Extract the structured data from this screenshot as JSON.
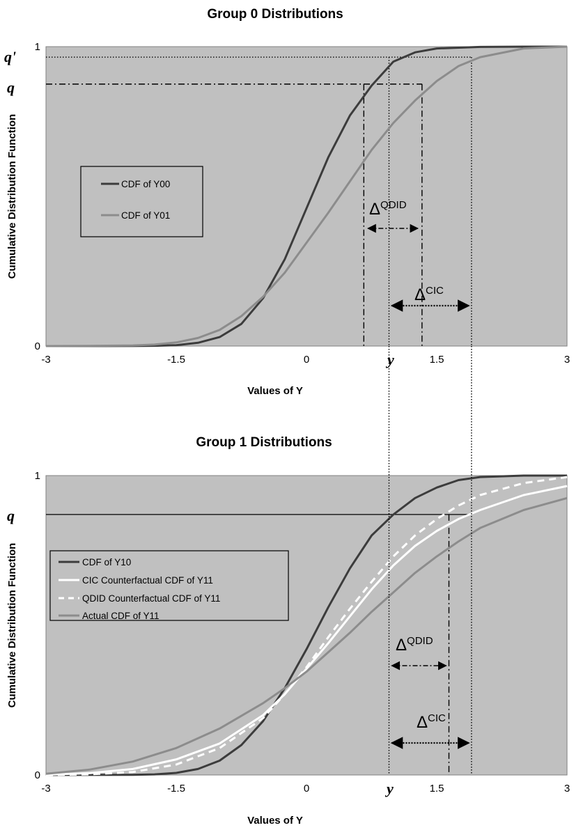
{
  "chart_data": [
    {
      "type": "line",
      "title": "Group 0 Distributions",
      "xlabel": "Values of Y",
      "ylabel": "Cumulative Distribution Function",
      "xlim": [
        -3,
        3
      ],
      "ylim": [
        0,
        1
      ],
      "x_ticks": [
        "-3",
        "-1.5",
        "0",
        "1.5",
        "3"
      ],
      "y_ticks": [
        "0",
        "1"
      ],
      "marker_labels": {
        "q": "q",
        "q_prime": "q'",
        "y": "y"
      },
      "legend_position": "left-middle",
      "series": [
        {
          "name": "CDF of Y00",
          "color": "#3c3c3c",
          "x": [
            -3,
            -2.5,
            -2,
            -1.75,
            -1.5,
            -1.25,
            -1,
            -0.75,
            -0.5,
            -0.25,
            0,
            0.25,
            0.5,
            0.75,
            1,
            1.25,
            1.5,
            2,
            2.5,
            3
          ],
          "y": [
            0,
            0,
            0.0003,
            0.001,
            0.003,
            0.011,
            0.03,
            0.074,
            0.16,
            0.29,
            0.46,
            0.63,
            0.77,
            0.87,
            0.95,
            0.981,
            0.994,
            0.999,
            1,
            1
          ]
        },
        {
          "name": "CDF of Y01",
          "color": "#8c8c8c",
          "x": [
            -3,
            -2.5,
            -2,
            -1.75,
            -1.5,
            -1.25,
            -1,
            -0.75,
            -0.5,
            -0.25,
            0,
            0.25,
            0.5,
            0.75,
            1,
            1.25,
            1.5,
            1.75,
            2,
            2.5,
            3
          ],
          "y": [
            0.0001,
            0.0005,
            0.002,
            0.005,
            0.012,
            0.027,
            0.054,
            0.1,
            0.165,
            0.245,
            0.345,
            0.445,
            0.55,
            0.655,
            0.745,
            0.82,
            0.885,
            0.935,
            0.965,
            0.994,
            1
          ]
        }
      ],
      "annotations": {
        "q": 0.875,
        "q_prime": 0.965,
        "y": 0.95,
        "q_quantile_Y00": 0.66,
        "q_quantile_Y01": 1.33,
        "q_prime_quantile_Y01": 1.9,
        "delta_qdid_label": "Δ",
        "delta_qdid_sup": "QDID",
        "delta_cic_label": "Δ",
        "delta_cic_sup": "CIC"
      }
    },
    {
      "type": "line",
      "title": "Group 1 Distributions",
      "xlabel": "Values of Y",
      "ylabel": "Cumulative Distribution Function",
      "xlim": [
        -3,
        3
      ],
      "ylim": [
        0,
        1
      ],
      "x_ticks": [
        "-3",
        "-1.5",
        "0",
        "1.5",
        "3"
      ],
      "y_ticks": [
        "0",
        "1"
      ],
      "marker_labels": {
        "q": "q",
        "y": "y"
      },
      "legend_position": "left-middle",
      "series": [
        {
          "name": "CDF of Y10",
          "color": "#3c3c3c",
          "dash": "solid",
          "x": [
            -3,
            -2,
            -1.75,
            -1.5,
            -1.25,
            -1,
            -0.75,
            -0.5,
            -0.25,
            0,
            0.25,
            0.5,
            0.75,
            1,
            1.25,
            1.5,
            1.75,
            2,
            2.5,
            3
          ],
          "y": [
            0,
            0.0005,
            0.002,
            0.007,
            0.02,
            0.048,
            0.1,
            0.18,
            0.29,
            0.42,
            0.56,
            0.69,
            0.8,
            0.87,
            0.925,
            0.96,
            0.985,
            0.995,
            1,
            1
          ]
        },
        {
          "name": "CIC Counterfactual CDF of Y11",
          "color": "#ffffff",
          "dash": "solid",
          "x": [
            -3,
            -2.5,
            -2,
            -1.5,
            -1,
            -0.5,
            -0.25,
            0,
            0.25,
            0.5,
            0.75,
            1,
            1.25,
            1.5,
            1.75,
            2,
            2.5,
            3
          ],
          "y": [
            0.001,
            0.006,
            0.02,
            0.052,
            0.105,
            0.2,
            0.27,
            0.355,
            0.44,
            0.53,
            0.62,
            0.7,
            0.765,
            0.815,
            0.855,
            0.885,
            0.935,
            0.965
          ]
        },
        {
          "name": "QDID Counterfactual CDF of Y11",
          "color": "#ffffff",
          "dash": "dashed",
          "x": [
            -3,
            -2.5,
            -2,
            -1.5,
            -1,
            -0.5,
            -0.25,
            0,
            0.25,
            0.5,
            0.75,
            1,
            1.25,
            1.5,
            1.75,
            2,
            2.5,
            3
          ],
          "y": [
            0,
            0.002,
            0.01,
            0.035,
            0.09,
            0.19,
            0.27,
            0.36,
            0.46,
            0.555,
            0.645,
            0.73,
            0.8,
            0.855,
            0.9,
            0.935,
            0.975,
            0.995
          ]
        },
        {
          "name": "Actual CDF of Y11",
          "color": "#8c8c8c",
          "dash": "solid",
          "x": [
            -3,
            -2.5,
            -2,
            -1.5,
            -1,
            -0.5,
            -0.25,
            0,
            0.25,
            0.5,
            0.75,
            1,
            1.25,
            1.5,
            1.75,
            2,
            2.5,
            3
          ],
          "y": [
            0.004,
            0.018,
            0.045,
            0.09,
            0.155,
            0.24,
            0.29,
            0.345,
            0.41,
            0.475,
            0.545,
            0.61,
            0.675,
            0.73,
            0.78,
            0.825,
            0.885,
            0.925
          ]
        }
      ],
      "annotations": {
        "q": 0.87,
        "y": 0.95,
        "qdid_quantile": 1.64,
        "cic_quantile": 1.9,
        "delta_qdid_label": "Δ",
        "delta_qdid_sup": "QDID",
        "delta_cic_label": "Δ",
        "delta_cic_sup": "CIC"
      }
    }
  ]
}
